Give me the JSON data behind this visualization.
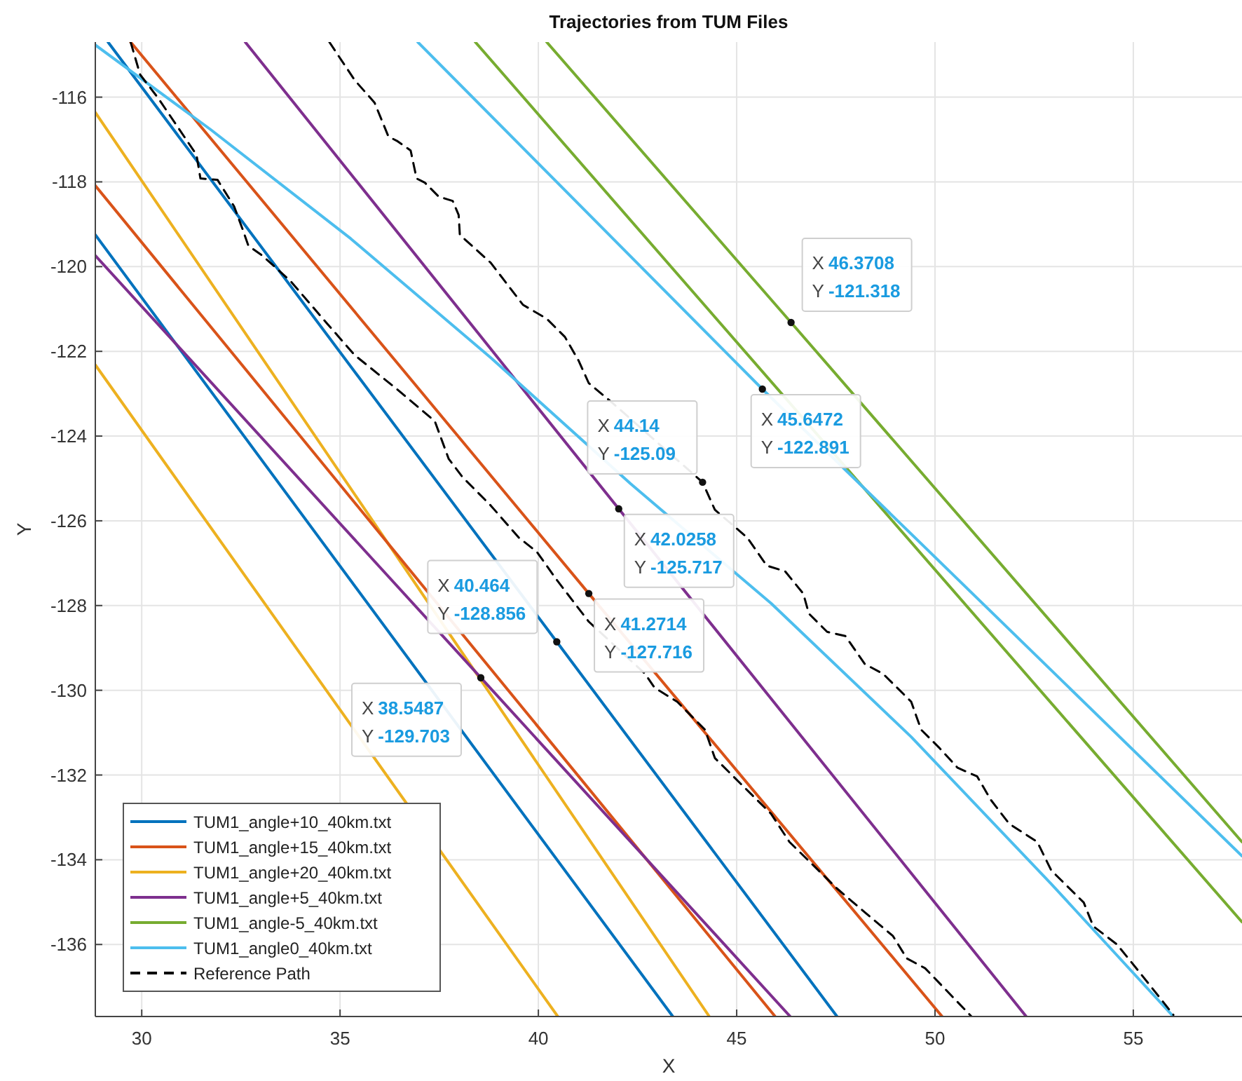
{
  "chart_data": {
    "type": "line",
    "title": "Trajectories from TUM Files",
    "xlabel": "X",
    "ylabel": "Y",
    "xlim": [
      28.83,
      57.74
    ],
    "ylim": [
      -137.7,
      -114.7
    ],
    "xticks": [
      30,
      35,
      40,
      45,
      50,
      55
    ],
    "yticks": [
      -116,
      -118,
      -120,
      -122,
      -124,
      -126,
      -128,
      -130,
      -132,
      -134,
      -136
    ],
    "grid": true,
    "legend": "bottom left",
    "line_style": "solid",
    "marker": "none",
    "series": [
      {
        "name": "TUM1_angle+10_40km.txt",
        "color": "#0072bd",
        "x": [
          29.15,
          40.464,
          47.53
        ],
        "values": [
          -114.7,
          -128.856,
          -137.7
        ]
      },
      {
        "name": "TUM1_angle+15_40km.txt",
        "color": "#d95319",
        "x": [
          29.72,
          41.2714,
          50.18
        ],
        "values": [
          -114.7,
          -127.716,
          -137.7
        ]
      },
      {
        "name": "TUM1_angle+20_40km.txt",
        "color": "#edb120",
        "x": [
          28.83,
          44.31
        ],
        "values": [
          -116.36,
          -137.7
        ]
      },
      {
        "name": "TUM1_angle+5_40km.txt",
        "color": "#7e2f8e",
        "x": [
          32.61,
          42.0258,
          52.3
        ],
        "values": [
          -114.7,
          -125.717,
          -137.7
        ]
      },
      {
        "name": "TUM1_angle-5_40km.txt",
        "color": "#77ac30",
        "x": [
          40.21,
          46.3708,
          57.74
        ],
        "values": [
          -114.7,
          -121.318,
          -133.58
        ]
      },
      {
        "name": "TUM1_angle0_40km.txt",
        "color": "#4dbeee",
        "x": [
          28.83,
          31.73,
          35.27,
          38.8,
          42.33,
          45.87,
          49.4,
          52.93,
          56.01
        ],
        "values": [
          -114.77,
          -116.76,
          -119.34,
          -122.15,
          -125.13,
          -127.95,
          -131.1,
          -134.57,
          -137.7
        ]
      },
      {
        "name": "Reference Path",
        "color": "#000000",
        "line_style": "dashed",
        "x": [
          29.72,
          29.96,
          30.42,
          31.38,
          31.48,
          31.91,
          32.33,
          32.54,
          32.69,
          33.04,
          33.75,
          34.66,
          35.37,
          36.43,
          37.39,
          37.74,
          38.09,
          38.8,
          39.51,
          39.96,
          40.46,
          41.27,
          42.69,
          42.93,
          43.5,
          44.2,
          44.45,
          45.16,
          45.87,
          46.33,
          47.53,
          48.23,
          48.94,
          49.29,
          49.75,
          50.92
        ],
        "values": [
          -114.7,
          -115.47,
          -116.03,
          -117.36,
          -117.92,
          -117.95,
          -118.58,
          -119.11,
          -119.51,
          -119.74,
          -120.34,
          -121.33,
          -122.09,
          -122.89,
          -123.65,
          -124.54,
          -124.97,
          -125.64,
          -126.4,
          -126.73,
          -127.39,
          -128.38,
          -129.61,
          -129.94,
          -130.27,
          -130.93,
          -131.6,
          -132.26,
          -132.92,
          -133.58,
          -134.68,
          -135.24,
          -135.8,
          -136.33,
          -136.56,
          -137.7
        ]
      },
      {
        "color": "#0072bd",
        "x": [
          28.83,
          43.39
        ],
        "values": [
          -119.25,
          -137.7
        ]
      },
      {
        "color": "#d95319",
        "x": [
          28.83,
          45.97
        ],
        "values": [
          -118.09,
          -137.7
        ]
      },
      {
        "color": "#edb120",
        "x": [
          28.83,
          40.49
        ],
        "values": [
          -122.32,
          -137.7
        ]
      },
      {
        "color": "#7e2f8e",
        "x": [
          28.83,
          38.5487,
          46.35
        ],
        "values": [
          -119.74,
          -129.703,
          -137.7
        ]
      },
      {
        "color": "#77ac30",
        "x": [
          38.41,
          57.74
        ],
        "values": [
          -114.7,
          -135.47
        ]
      },
      {
        "color": "#4dbeee",
        "x": [
          36.96,
          45.6472,
          57.74
        ],
        "values": [
          -114.7,
          -122.891,
          -133.91
        ]
      },
      {
        "color": "#000000",
        "line_style": "dashed",
        "x": [
          34.73,
          35.37,
          35.87,
          36.22,
          36.43,
          36.78,
          36.93,
          37.14,
          37.49,
          37.84,
          37.99,
          38.02,
          38.8,
          39.61,
          40.21,
          40.67,
          41.02,
          41.27,
          41.87,
          44.14,
          44.45,
          45.27,
          45.76,
          46.22,
          46.68,
          46.82,
          47.28,
          47.74,
          48.23,
          48.69,
          49.4,
          49.65,
          50.11,
          50.57,
          51.06,
          51.41,
          51.87,
          52.58,
          52.93,
          53.75,
          53.99,
          54.59,
          55.16,
          56.01
        ],
        "values": [
          -114.7,
          -115.6,
          -116.13,
          -116.93,
          -117.03,
          -117.26,
          -117.92,
          -118.02,
          -118.35,
          -118.45,
          -118.78,
          -119.25,
          -119.91,
          -120.9,
          -121.23,
          -121.66,
          -122.23,
          -122.75,
          -123.22,
          -125.09,
          -125.74,
          -126.4,
          -127.06,
          -127.19,
          -127.72,
          -128.19,
          -128.62,
          -128.72,
          -129.38,
          -129.61,
          -130.27,
          -130.93,
          -131.36,
          -131.83,
          -132.03,
          -132.59,
          -133.15,
          -133.58,
          -134.25,
          -135.01,
          -135.57,
          -136.0,
          -136.66,
          -137.66
        ]
      }
    ],
    "annotations": [
      {
        "text": "X 46.3708\nY -121.318",
        "x": 46.3708,
        "y": -121.318
      },
      {
        "text": "X 45.6472\nY -122.891",
        "x": 45.6472,
        "y": -122.891
      },
      {
        "text": "X 44.14\nY -125.09",
        "x": 44.14,
        "y": -125.09
      },
      {
        "text": "X 42.0258\nY -125.717",
        "x": 42.0258,
        "y": -125.717
      },
      {
        "text": "X 41.2714\nY -127.716",
        "x": 41.2714,
        "y": -127.716
      },
      {
        "text": "X 40.464\nY -128.856",
        "x": 40.464,
        "y": -128.856
      },
      {
        "text": "X 38.5487\nY -129.703",
        "x": 38.5487,
        "y": -129.703
      }
    ]
  }
}
